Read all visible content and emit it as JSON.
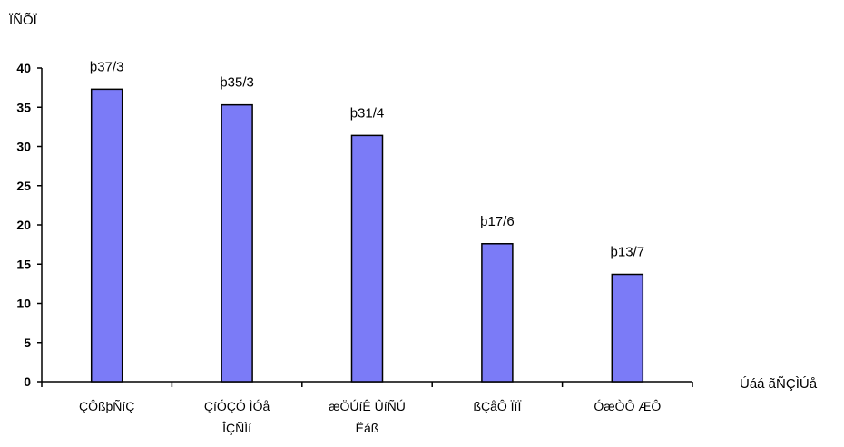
{
  "chart_data": {
    "type": "bar",
    "ylabel": "ÏÑÕÏ",
    "xlabel": "Úáá ãÑÇÌÚå",
    "categories": [
      [
        "ÇÔßþÑíÇ"
      ],
      [
        "ÇíÓÇÓ ÌÓå",
        "ÎÇÑÌí"
      ],
      [
        "æÖÚíÊ ÛíÑÚ",
        "Ëáß"
      ],
      [
        "ßÇåÔ ÏíÏ"
      ],
      [
        "ÓæÒÔ ÆÔ"
      ]
    ],
    "values": [
      37.3,
      35.3,
      31.4,
      17.6,
      13.7
    ],
    "data_labels": [
      "þ37/3",
      "þ35/3",
      "þ31/4",
      "þ17/6",
      "þ13/7"
    ],
    "ylim": [
      0,
      40
    ],
    "yticks": [
      "0",
      "5",
      "10",
      "15",
      "20",
      "25",
      "30",
      "35",
      "40"
    ],
    "bar_color": "#7B7BF7",
    "grid": false
  }
}
